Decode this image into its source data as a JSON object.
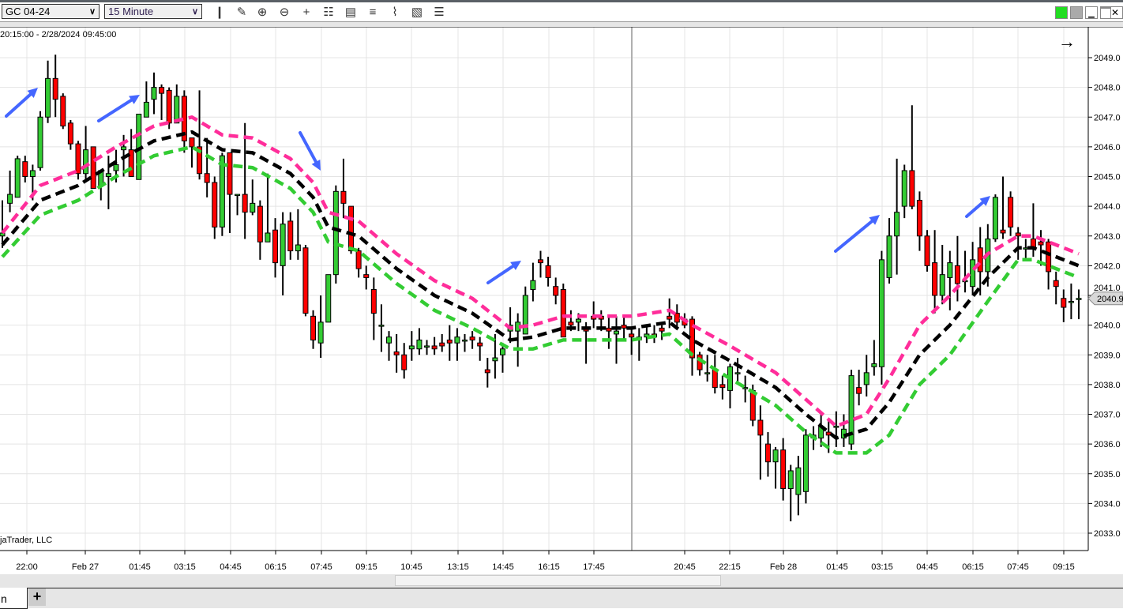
{
  "toolbar": {
    "instrument": "GC 04-24",
    "interval": "15 Minute",
    "icons": [
      "bar-type-icon",
      "pencil-draw-icon",
      "zoom-in-icon",
      "zoom-out-icon",
      "crosshair-icon",
      "data-box-icon",
      "properties-icon",
      "indicators-icon",
      "strategies-icon",
      "templates-icon",
      "list-icon"
    ]
  },
  "window": {
    "status_color": "#22dd22"
  },
  "chart": {
    "range_text": "20:15:00 - 2/28/2024 09:45:00",
    "copyright": "jaTrader, LLC",
    "current_price": "2040.9"
  },
  "tabs": {
    "active_label": "n",
    "add_label": "+"
  },
  "chart_data": {
    "type": "candlestick",
    "instrument": "GC 04-24",
    "interval": "15 Minute",
    "y_ticks": [
      "2049.0",
      "2048.0",
      "2047.0",
      "2046.0",
      "2045.0",
      "2044.0",
      "2043.0",
      "2042.0",
      "2041.0",
      "2040.0",
      "2039.0",
      "2038.0",
      "2037.0",
      "2036.0",
      "2035.0",
      "2034.0",
      "2033.0"
    ],
    "ylim": [
      2032.6,
      2050.0
    ],
    "x_ticks": [
      "22:00",
      "Feb 27",
      "01:45",
      "03:15",
      "04:45",
      "06:15",
      "07:45",
      "09:15",
      "10:45",
      "13:15",
      "14:45",
      "16:15",
      "17:45",
      "20:45",
      "22:15",
      "Feb 28",
      "01:45",
      "03:15",
      "04:45",
      "06:15",
      "07:45",
      "09:15"
    ],
    "grid": true,
    "colors": {
      "up": "#33cc33",
      "down": "#ff0000",
      "upper_band": "#ff2d9a",
      "middle_band": "#000000",
      "lower_band": "#33cc33",
      "annotation_arrows": "#4466ff"
    },
    "candles_ohlc": [
      [
        2043.0,
        2044.2,
        2042.6,
        2043.1
      ],
      [
        2044.1,
        2045.2,
        2043.8,
        2044.4
      ],
      [
        2044.3,
        2045.7,
        2044.3,
        2045.6
      ],
      [
        2045.5,
        2045.7,
        2044.8,
        2045.0
      ],
      [
        2045.0,
        2045.4,
        2044.2,
        2045.2
      ],
      [
        2045.3,
        2047.2,
        2045.2,
        2047.0
      ],
      [
        2047.0,
        2048.9,
        2046.8,
        2048.3
      ],
      [
        2048.3,
        2049.1,
        2047.0,
        2047.6
      ],
      [
        2047.7,
        2047.8,
        2046.6,
        2046.7
      ],
      [
        2046.8,
        2046.9,
        2045.9,
        2046.1
      ],
      [
        2046.1,
        2046.2,
        2044.9,
        2045.1
      ],
      [
        2045.1,
        2046.7,
        2044.8,
        2045.9
      ],
      [
        2046.0,
        2046.0,
        2044.6,
        2044.6
      ],
      [
        2044.7,
        2045.2,
        2044.2,
        2045.2
      ],
      [
        2045.0,
        2045.7,
        2043.9,
        2045.1
      ],
      [
        2045.2,
        2045.9,
        2044.8,
        2045.4
      ],
      [
        2045.9,
        2046.4,
        2045.0,
        2046.0
      ],
      [
        2045.9,
        2046.6,
        2045.0,
        2045.0
      ],
      [
        2044.9,
        2047.1,
        2044.9,
        2047.1
      ],
      [
        2047.0,
        2048.2,
        2047.0,
        2047.5
      ],
      [
        2047.6,
        2048.5,
        2047.1,
        2048.0
      ],
      [
        2048.0,
        2048.1,
        2046.9,
        2047.8
      ],
      [
        2047.9,
        2048.0,
        2046.6,
        2046.8
      ],
      [
        2046.8,
        2048.1,
        2046.8,
        2047.7
      ],
      [
        2047.7,
        2047.9,
        2045.8,
        2046.2
      ],
      [
        2046.3,
        2046.3,
        2045.3,
        2046.0
      ],
      [
        2046.0,
        2047.9,
        2044.9,
        2045.1
      ],
      [
        2045.1,
        2046.3,
        2044.3,
        2044.8
      ],
      [
        2044.8,
        2045.0,
        2042.9,
        2043.3
      ],
      [
        2043.3,
        2045.8,
        2043.0,
        2045.7
      ],
      [
        2045.8,
        2045.8,
        2043.1,
        2044.4
      ],
      [
        2044.4,
        2044.4,
        2043.7,
        2044.4
      ],
      [
        2044.4,
        2046.8,
        2042.9,
        2043.8
      ],
      [
        2043.8,
        2044.9,
        2043.7,
        2044.1
      ],
      [
        2044.0,
        2044.2,
        2042.2,
        2042.8
      ],
      [
        2042.8,
        2045.1,
        2042.8,
        2043.1
      ],
      [
        2043.2,
        2043.6,
        2041.6,
        2042.1
      ],
      [
        2042.0,
        2043.8,
        2041.0,
        2043.4
      ],
      [
        2043.5,
        2043.8,
        2042.2,
        2042.5
      ],
      [
        2042.5,
        2043.9,
        2042.2,
        2042.7
      ],
      [
        2042.6,
        2042.7,
        2040.3,
        2040.4
      ],
      [
        2040.3,
        2040.5,
        2039.2,
        2039.5
      ],
      [
        2039.4,
        2041.0,
        2038.9,
        2040.1
      ],
      [
        2040.1,
        2041.7,
        2040.1,
        2041.7
      ],
      [
        2041.7,
        2044.7,
        2041.4,
        2044.5
      ],
      [
        2044.5,
        2045.6,
        2043.6,
        2044.1
      ],
      [
        2044.0,
        2044.0,
        2042.4,
        2042.5
      ],
      [
        2042.5,
        2042.6,
        2041.6,
        2041.9
      ],
      [
        2041.7,
        2042.0,
        2041.2,
        2041.6
      ],
      [
        2041.2,
        2041.6,
        2039.5,
        2040.4
      ],
      [
        2040.0,
        2040.7,
        2039.1,
        2040.0
      ],
      [
        2039.4,
        2039.8,
        2038.8,
        2039.6
      ],
      [
        2039.1,
        2039.7,
        2038.4,
        2039.0
      ],
      [
        2039.0,
        2039.4,
        2038.2,
        2038.5
      ],
      [
        2039.2,
        2039.8,
        2038.8,
        2039.3
      ],
      [
        2039.2,
        2039.9,
        2039.0,
        2039.5
      ],
      [
        2039.3,
        2039.5,
        2039.0,
        2039.3
      ],
      [
        2039.3,
        2039.6,
        2039.0,
        2039.2
      ],
      [
        2039.4,
        2039.7,
        2039.1,
        2039.3
      ],
      [
        2039.5,
        2040.0,
        2038.8,
        2039.4
      ],
      [
        2039.4,
        2039.9,
        2038.8,
        2039.6
      ],
      [
        2039.5,
        2039.7,
        2039.1,
        2039.5
      ],
      [
        2039.6,
        2039.8,
        2039.2,
        2039.5
      ],
      [
        2039.4,
        2039.6,
        2038.8,
        2039.3
      ],
      [
        2038.5,
        2038.9,
        2037.9,
        2038.4
      ],
      [
        2038.8,
        2039.7,
        2038.2,
        2038.9
      ],
      [
        2039.0,
        2039.4,
        2038.4,
        2039.2
      ],
      [
        2039.8,
        2040.6,
        2039.4,
        2040.0
      ],
      [
        2039.8,
        2040.4,
        2038.6,
        2040.1
      ],
      [
        2039.7,
        2041.3,
        2039.7,
        2041.0
      ],
      [
        2041.2,
        2042.1,
        2040.8,
        2041.5
      ],
      [
        2042.2,
        2042.5,
        2041.6,
        2042.1
      ],
      [
        2042.0,
        2042.3,
        2041.3,
        2041.6
      ],
      [
        2041.3,
        2041.6,
        2040.7,
        2041.0
      ],
      [
        2041.2,
        2041.4,
        2039.6,
        2039.6
      ],
      [
        2040.1,
        2040.5,
        2039.8,
        2040.0
      ],
      [
        2040.1,
        2040.4,
        2039.8,
        2040.2
      ],
      [
        2039.9,
        2040.1,
        2038.7,
        2039.8
      ],
      [
        2040.3,
        2040.8,
        2039.9,
        2040.2
      ],
      [
        2040.3,
        2040.5,
        2039.8,
        2040.2
      ],
      [
        2039.9,
        2040.3,
        2039.2,
        2039.8
      ],
      [
        2039.7,
        2040.3,
        2038.7,
        2039.8
      ],
      [
        2040.0,
        2040.3,
        2039.5,
        2039.9
      ],
      [
        2039.7,
        2039.9,
        2039.0,
        2039.6
      ],
      [
        2039.6,
        2039.9,
        2038.8,
        2039.5
      ],
      [
        2039.6,
        2040.0,
        2039.4,
        2039.7
      ],
      [
        2039.7,
        2040.0,
        2039.4,
        2039.6
      ],
      [
        2039.9,
        2040.0,
        2039.5,
        2039.8
      ],
      [
        2040.3,
        2040.9,
        2039.9,
        2040.2
      ],
      [
        2040.4,
        2040.7,
        2039.9,
        2040.1
      ],
      [
        2040.2,
        2040.4,
        2039.9,
        2040.0
      ],
      [
        2040.2,
        2040.3,
        2038.3,
        2038.9
      ],
      [
        2039.0,
        2039.1,
        2038.3,
        2038.5
      ],
      [
        2038.4,
        2039.0,
        2038.1,
        2038.4
      ],
      [
        2038.5,
        2039.0,
        2037.7,
        2037.9
      ],
      [
        2038.0,
        2038.3,
        2037.5,
        2037.9
      ],
      [
        2037.8,
        2038.7,
        2037.2,
        2038.6
      ],
      [
        2038.4,
        2038.9,
        2038.0,
        2038.4
      ],
      [
        2037.9,
        2038.3,
        2037.4,
        2037.9
      ],
      [
        2037.8,
        2038.0,
        2036.6,
        2036.8
      ],
      [
        2036.8,
        2037.3,
        2034.8,
        2036.3
      ],
      [
        2036.0,
        2036.4,
        2034.9,
        2035.4
      ],
      [
        2035.4,
        2035.9,
        2034.5,
        2035.8
      ],
      [
        2035.8,
        2036.2,
        2034.1,
        2034.5
      ],
      [
        2034.5,
        2035.3,
        2033.4,
        2035.1
      ],
      [
        2034.3,
        2035.6,
        2033.6,
        2035.2
      ],
      [
        2034.4,
        2036.5,
        2034.0,
        2036.3
      ],
      [
        2036.2,
        2036.6,
        2035.8,
        2036.3
      ],
      [
        2036.2,
        2037.0,
        2035.9,
        2036.6
      ],
      [
        2036.4,
        2036.8,
        2035.7,
        2036.3
      ],
      [
        2036.6,
        2037.1,
        2035.9,
        2036.6
      ],
      [
        2036.2,
        2037.0,
        2035.9,
        2036.5
      ],
      [
        2036.0,
        2038.5,
        2035.8,
        2038.3
      ],
      [
        2037.9,
        2038.5,
        2037.3,
        2037.7
      ],
      [
        2038.0,
        2039.0,
        2037.6,
        2038.4
      ],
      [
        2038.6,
        2039.5,
        2038.3,
        2038.7
      ],
      [
        2038.6,
        2042.5,
        2038.0,
        2042.2
      ],
      [
        2041.6,
        2043.6,
        2041.4,
        2043.0
      ],
      [
        2043.0,
        2045.6,
        2041.7,
        2043.8
      ],
      [
        2044.0,
        2045.4,
        2043.6,
        2045.2
      ],
      [
        2045.2,
        2047.4,
        2043.9,
        2044.0
      ],
      [
        2044.2,
        2044.5,
        2042.5,
        2043.0
      ],
      [
        2043.0,
        2043.2,
        2041.8,
        2042.0
      ],
      [
        2042.1,
        2043.2,
        2040.4,
        2041.0
      ],
      [
        2041.0,
        2042.7,
        2040.7,
        2041.7
      ],
      [
        2041.6,
        2042.5,
        2040.5,
        2042.1
      ],
      [
        2042.0,
        2043.0,
        2040.8,
        2041.4
      ],
      [
        2041.5,
        2042.5,
        2041.1,
        2041.5
      ],
      [
        2041.3,
        2042.8,
        2041.0,
        2042.2
      ],
      [
        2042.6,
        2043.3,
        2041.0,
        2041.8
      ],
      [
        2041.8,
        2043.4,
        2041.3,
        2042.9
      ],
      [
        2042.9,
        2044.4,
        2042.8,
        2044.3
      ],
      [
        2043.2,
        2045.0,
        2042.9,
        2043.1
      ],
      [
        2044.3,
        2044.5,
        2043.0,
        2043.3
      ],
      [
        2043.1,
        2043.3,
        2042.2,
        2043.0
      ],
      [
        2042.6,
        2042.9,
        2042.2,
        2042.6
      ],
      [
        2042.9,
        2044.1,
        2042.3,
        2042.6
      ],
      [
        2042.8,
        2043.2,
        2042.0,
        2042.7
      ],
      [
        2042.8,
        2042.9,
        2041.2,
        2041.8
      ],
      [
        2041.5,
        2041.8,
        2040.7,
        2041.3
      ],
      [
        2040.9,
        2041.2,
        2040.1,
        2040.6
      ],
      [
        2040.8,
        2041.4,
        2040.2,
        2040.8
      ],
      [
        2040.9,
        2041.2,
        2040.2,
        2040.9
      ]
    ],
    "bands": {
      "bar_index": [
        0,
        5,
        10,
        15,
        20,
        25,
        29,
        33,
        38,
        41,
        43,
        47,
        52,
        57,
        62,
        67,
        70,
        74,
        79,
        83,
        88,
        91,
        96,
        102,
        106,
        110,
        114,
        117,
        121,
        125,
        130,
        134,
        136,
        139,
        142
      ],
      "upper": [
        2043.1,
        2044.7,
        2045.2,
        2046.0,
        2046.7,
        2047.0,
        2046.4,
        2046.3,
        2045.6,
        2044.8,
        2043.8,
        2043.5,
        2042.4,
        2041.5,
        2040.9,
        2039.9,
        2040.0,
        2040.3,
        2040.3,
        2040.3,
        2040.5,
        2040.0,
        2039.3,
        2038.4,
        2037.5,
        2036.6,
        2037.0,
        2038.2,
        2040.0,
        2041.0,
        2042.4,
        2043.0,
        2043.0,
        2042.7,
        2042.4
      ],
      "middle": [
        2042.7,
        2044.2,
        2044.7,
        2045.5,
        2046.2,
        2046.5,
        2045.9,
        2045.8,
        2045.1,
        2044.3,
        2043.3,
        2043.0,
        2041.9,
        2041.0,
        2040.4,
        2039.5,
        2039.6,
        2039.9,
        2039.9,
        2039.9,
        2040.1,
        2039.5,
        2038.8,
        2037.9,
        2037.0,
        2036.2,
        2036.5,
        2037.4,
        2039.0,
        2040.0,
        2041.6,
        2042.6,
        2042.6,
        2042.3,
        2042.0
      ],
      "lower": [
        2042.3,
        2043.7,
        2044.2,
        2045.0,
        2045.7,
        2046.0,
        2045.4,
        2045.3,
        2044.6,
        2043.8,
        2042.8,
        2042.5,
        2041.4,
        2040.5,
        2039.9,
        2039.2,
        2039.2,
        2039.5,
        2039.5,
        2039.5,
        2039.7,
        2039.0,
        2038.2,
        2037.3,
        2036.4,
        2035.7,
        2035.7,
        2036.3,
        2038.0,
        2039.0,
        2040.8,
        2042.2,
        2042.2,
        2041.9,
        2041.6
      ]
    },
    "last_price": 2040.9
  }
}
